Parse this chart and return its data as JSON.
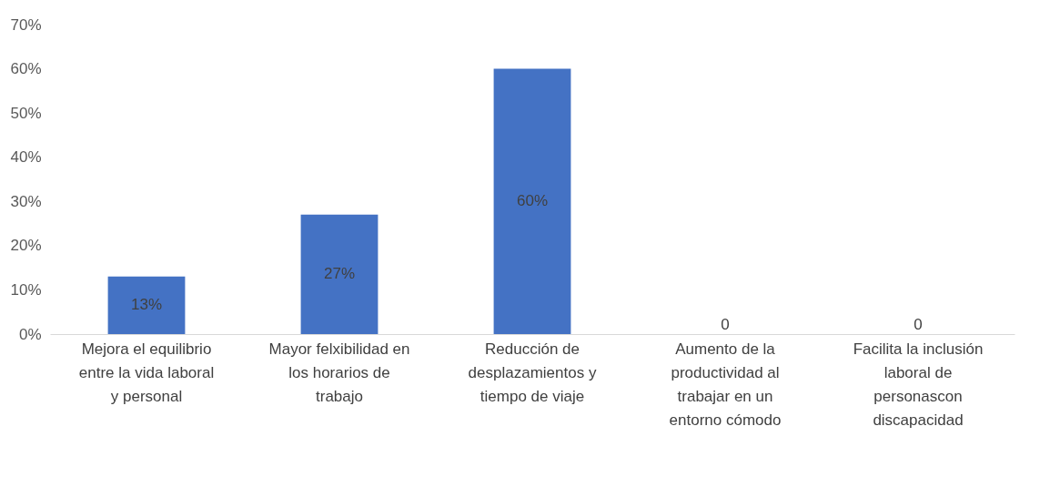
{
  "chart_data": {
    "type": "bar",
    "categories": [
      "Mejora el equilibrio entre la vida laboral y personal",
      "Mayor felxibilidad en los horarios de trabajo",
      "Reducción de desplazamientos y tiempo de viaje",
      "Aumento de la productividad al trabajar en un entorno cómodo",
      "Facilita la inclusión laboral de personascon discapacidad"
    ],
    "values": [
      13,
      27,
      60,
      0,
      0
    ],
    "value_labels": [
      "13%",
      "27%",
      "60%",
      "0",
      "0"
    ],
    "color": "#4472c4",
    "ylim": [
      0,
      70
    ],
    "yticks": [
      {
        "value": 0,
        "label": "0%"
      },
      {
        "value": 10,
        "label": "10%"
      },
      {
        "value": 20,
        "label": "20%"
      },
      {
        "value": 30,
        "label": "30%"
      },
      {
        "value": 40,
        "label": "40%"
      },
      {
        "value": 50,
        "label": "50%"
      },
      {
        "value": 60,
        "label": "60%"
      },
      {
        "value": 70,
        "label": "70%"
      }
    ],
    "grid": false
  }
}
